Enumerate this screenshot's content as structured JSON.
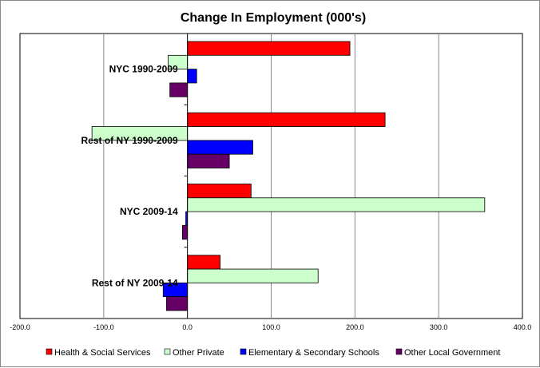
{
  "chart_data": {
    "type": "bar",
    "orientation": "horizontal",
    "title": "Change In Employment (000's)",
    "xlabel": "",
    "ylabel": "",
    "xlim": [
      -200,
      400
    ],
    "x_ticks": [
      -200,
      -100,
      0,
      100,
      200,
      300,
      400
    ],
    "x_tick_labels": [
      "-200.0",
      "-100.0",
      "0.0",
      "100.0",
      "200.0",
      "300.0",
      "400.0"
    ],
    "grid": "vertical major gridlines",
    "legend_position": "bottom",
    "categories": [
      "NYC 1990-2009",
      "Rest of NY 1990-2009",
      "NYC 2009-14",
      "Rest of NY 2009-14"
    ],
    "series": [
      {
        "name": "Health & Social Services",
        "color": "#ff0000",
        "values": [
          194,
          236,
          76,
          39
        ]
      },
      {
        "name": "Other Private",
        "color": "#ccffcc",
        "values": [
          -23,
          -114,
          355,
          156
        ]
      },
      {
        "name": "Elementary & Secondary Schools",
        "color": "#0000ff",
        "values": [
          11,
          78,
          -2,
          -29
        ]
      },
      {
        "name": "Other Local Government",
        "color": "#660066",
        "values": [
          -21,
          50,
          -6,
          -25
        ]
      }
    ]
  }
}
